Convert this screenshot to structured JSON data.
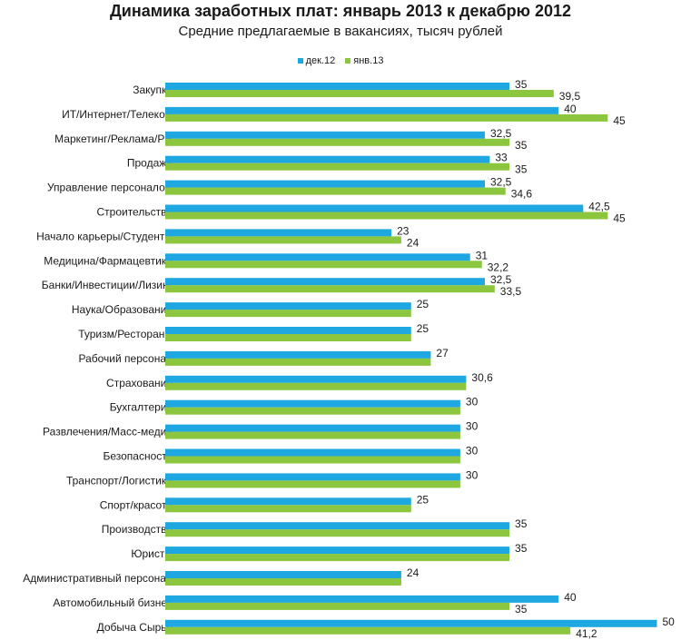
{
  "chart_data": {
    "type": "bar",
    "orientation": "horizontal",
    "title": "Динамика заработных плат: январь 2013 к декабрю 2012",
    "subtitle": "Средние предлагаемые в вакансиях, тысяч рублей",
    "legend_position": "top",
    "grid": false,
    "xlim": [
      0,
      50
    ],
    "categories": [
      "Закупки",
      "ИТ/Интернет/Телеком",
      "Маркетинг/Реклама/PR",
      "Продажи",
      "Управление персоналом",
      "Строительство",
      "Начало карьеры/Студенты",
      "Медицина/Фармацевтика",
      "Банки/Инвестиции/Лизинг",
      "Наука/Образование",
      "Туризм/Рестораны",
      "Рабочий персонал",
      "Страхование",
      "Бухгалтерия",
      "Развлечения/Масс-медиа",
      "Безопасность",
      "Транспорт/Логистика",
      "Спорт/красота",
      "Производство",
      "Юристы",
      "Административный персонал",
      "Автомобильный бизнес",
      "Добыча Сырья"
    ],
    "series": [
      {
        "name": "дек.12",
        "color": "#1ea7e1",
        "values": [
          35,
          40,
          32.5,
          33,
          32.5,
          42.5,
          23,
          31,
          32.5,
          25,
          25,
          27,
          30.6,
          30,
          30,
          30,
          30,
          25,
          35,
          35,
          24,
          40,
          50
        ],
        "labels": [
          "35",
          "40",
          "32,5",
          "33",
          "32,5",
          "42,5",
          "23",
          "31",
          "32,5",
          "25",
          "25",
          "27",
          "30,6",
          "30",
          "30",
          "30",
          "30",
          "25",
          "35",
          "35",
          "24",
          "40",
          "50"
        ]
      },
      {
        "name": "янв.13",
        "color": "#8cc63f",
        "values": [
          39.5,
          45,
          35,
          35,
          34.6,
          45,
          24,
          32.2,
          33.5,
          25,
          25,
          27,
          30.6,
          30,
          30,
          30,
          30,
          25,
          35,
          35,
          24,
          35,
          41.2
        ],
        "labels": [
          "39,5",
          "45",
          "35",
          "35",
          "34,6",
          "45",
          "24",
          "32,2",
          "33,5",
          "",
          "",
          "",
          "",
          "",
          "",
          "",
          "",
          "",
          "",
          "",
          "",
          "35",
          "41,2"
        ]
      }
    ]
  }
}
